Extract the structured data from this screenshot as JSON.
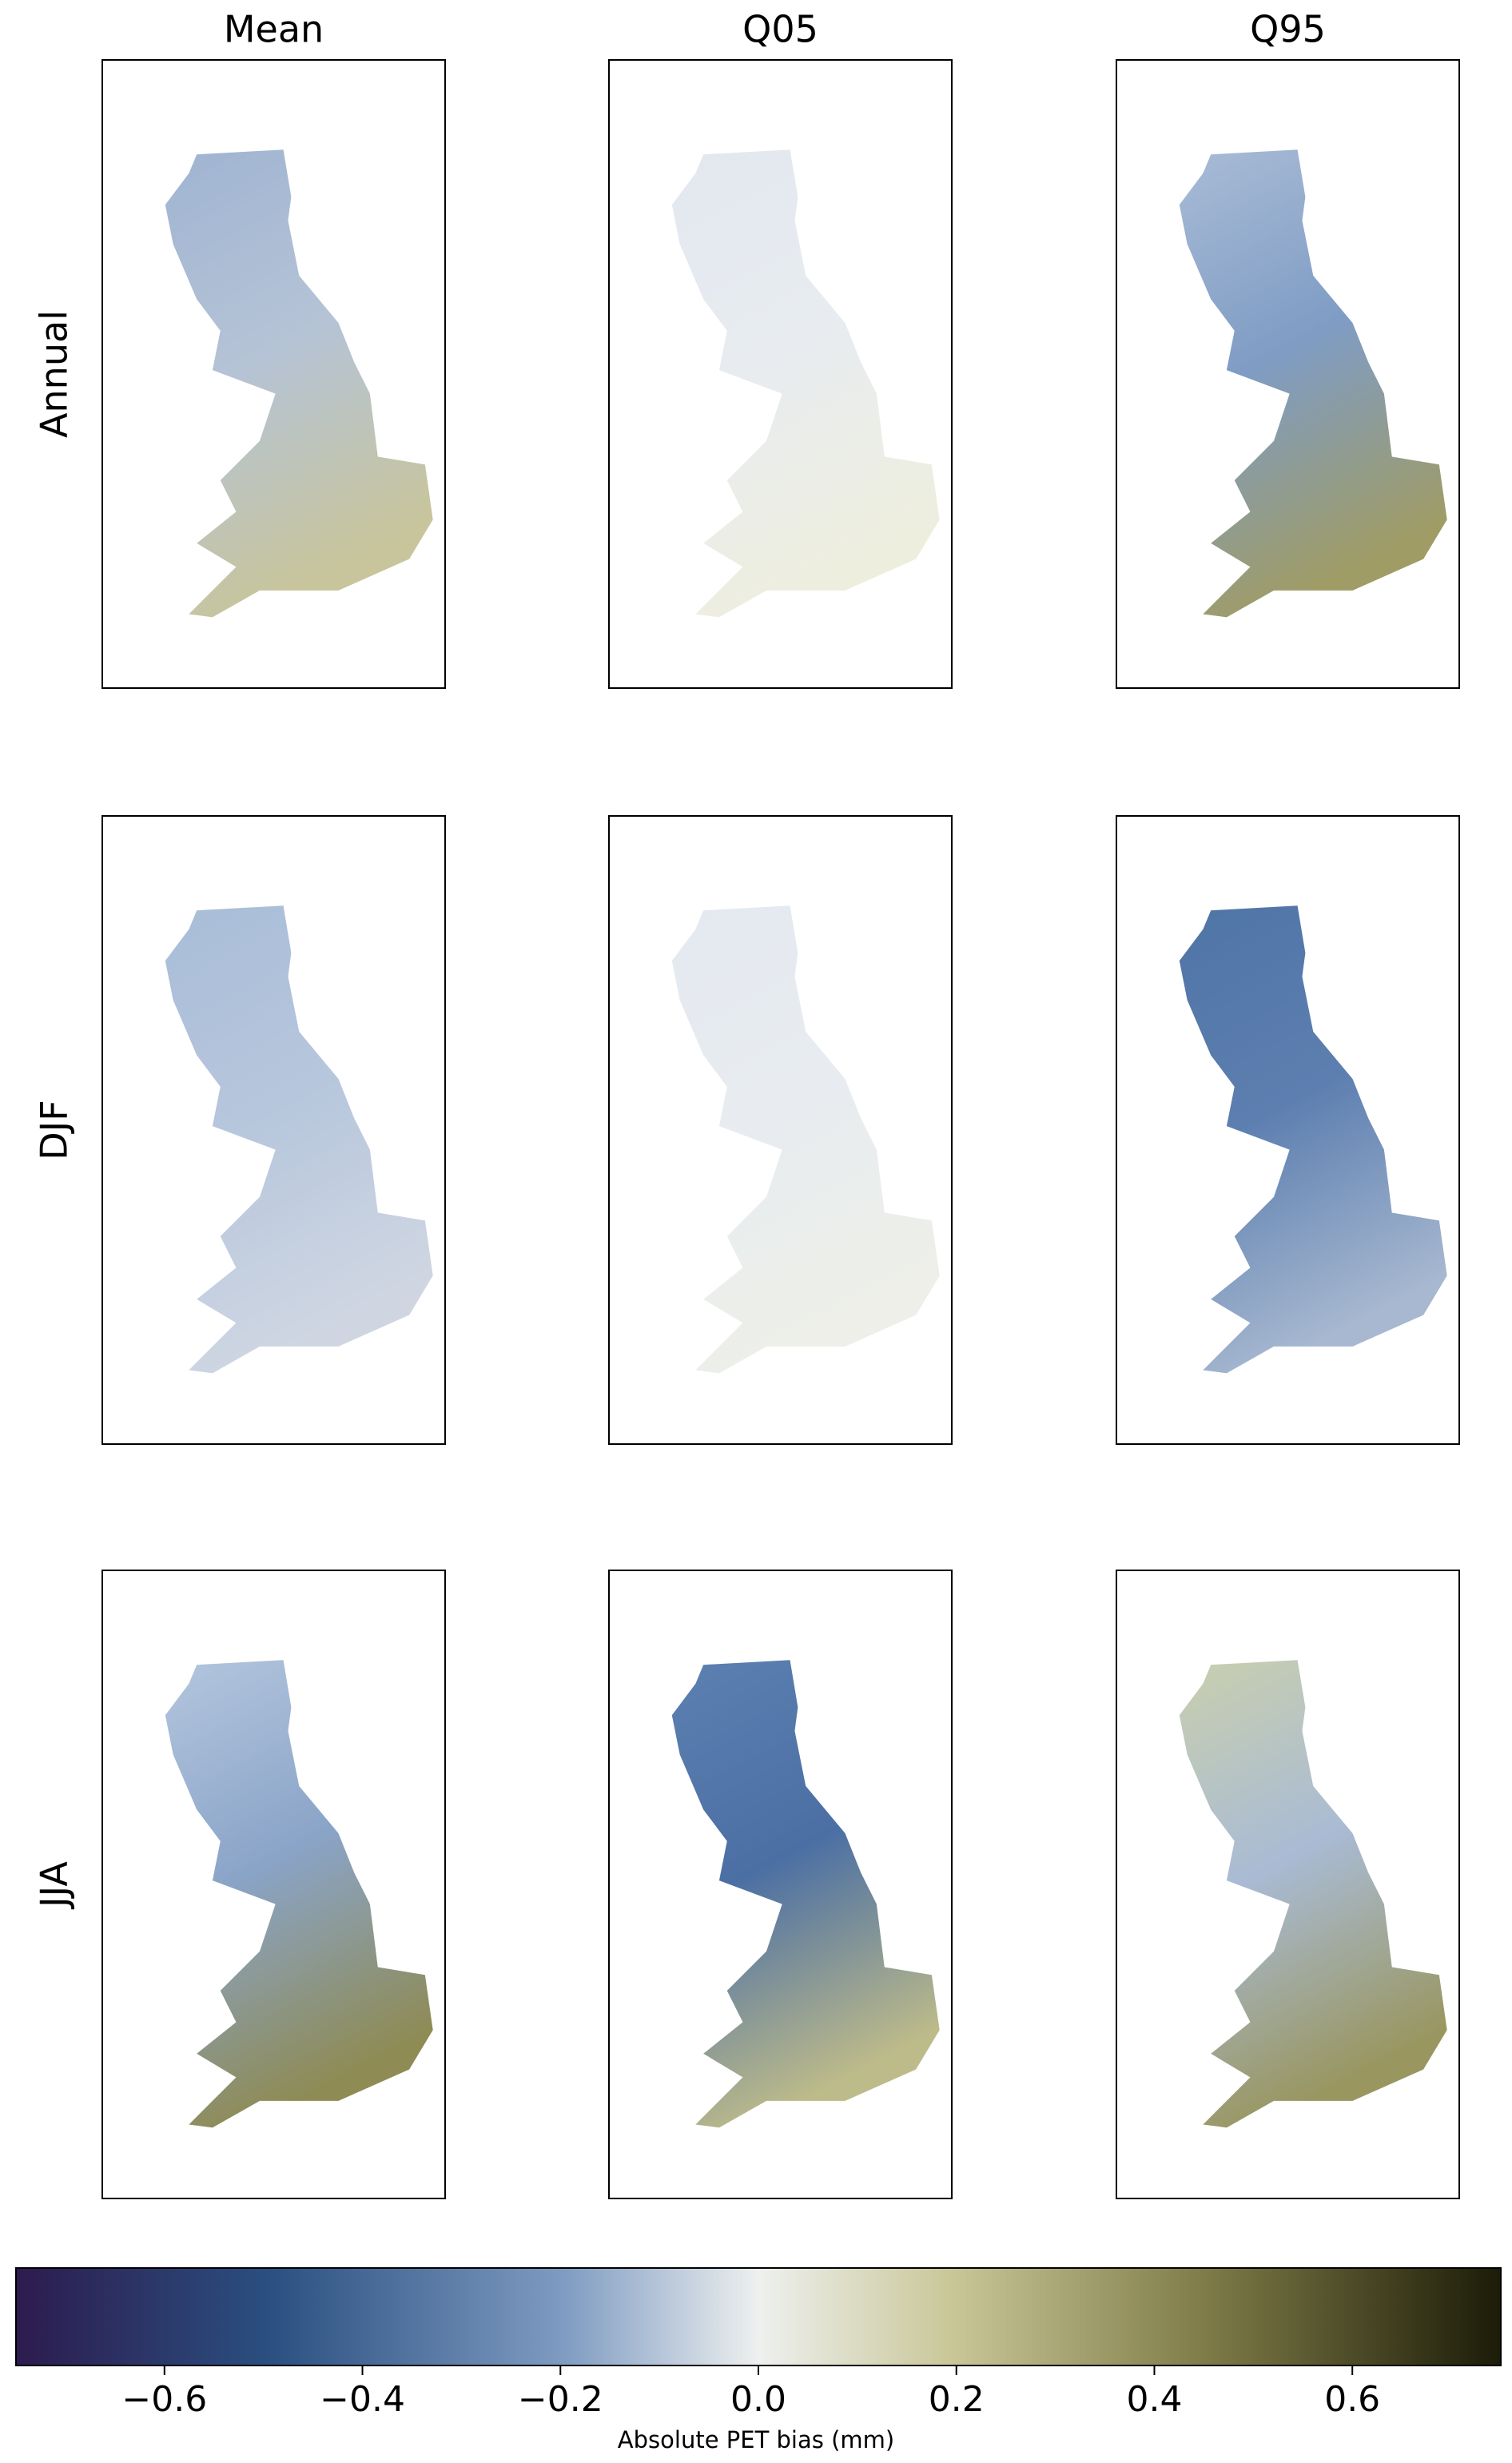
{
  "chart_data": {
    "type": "colorbar",
    "columns": [
      "Mean",
      "Q05",
      "Q95"
    ],
    "rows": [
      "Annual",
      "DJF",
      "JJA"
    ],
    "xlabel": "Absolute PET bias (mm)",
    "xlim": [
      -0.75,
      0.75
    ],
    "xticks": [
      {
        "value": -0.6,
        "label": "−0.6"
      },
      {
        "value": -0.4,
        "label": "−0.4"
      },
      {
        "value": -0.2,
        "label": "−0.2"
      },
      {
        "value": 0,
        "label": "0.0"
      },
      0.2,
      0.4,
      0.6
    ]
  }
}
